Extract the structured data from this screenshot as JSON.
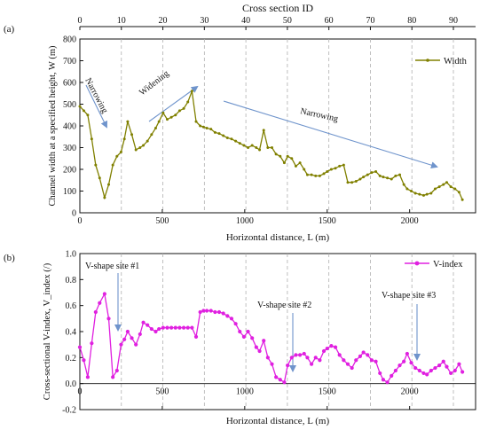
{
  "panel_a_label": "(a)",
  "panel_b_label": "(b)",
  "colors": {
    "width": "#808000",
    "vindex": "#e020e0",
    "arrow": "#6f94cc",
    "dash": "#b0b0b0"
  },
  "chart_data": [
    {
      "type": "line",
      "panel": "a",
      "top_axis_label": "Cross section ID",
      "top_ticks": [
        0,
        10,
        20,
        30,
        40,
        50,
        60,
        70,
        80,
        90
      ],
      "xlabel": "Horizontal distance, L (m)",
      "ylabel": "Channel width at a specified height, W (m)",
      "xlim": [
        0,
        2400
      ],
      "ylim": [
        0,
        800
      ],
      "xticks": [
        0,
        500,
        1000,
        1500,
        2000
      ],
      "yticks": [
        0,
        100,
        200,
        300,
        400,
        500,
        600,
        700,
        800
      ],
      "grid": "vertical dashed lines at section-ID tick positions",
      "legend": "top-right",
      "series": [
        {
          "name": "Width",
          "x": [
            0,
            24,
            48,
            72,
            96,
            120,
            150,
            175,
            200,
            225,
            250,
            270,
            290,
            315,
            340,
            365,
            385,
            410,
            435,
            460,
            480,
            505,
            530,
            555,
            580,
            605,
            630,
            655,
            680,
            705,
            730,
            750,
            770,
            795,
            820,
            845,
            870,
            895,
            920,
            945,
            970,
            995,
            1020,
            1045,
            1070,
            1090,
            1115,
            1140,
            1165,
            1190,
            1215,
            1240,
            1260,
            1285,
            1310,
            1335,
            1360,
            1380,
            1405,
            1430,
            1455,
            1480,
            1500,
            1525,
            1550,
            1575,
            1600,
            1625,
            1650,
            1675,
            1700,
            1720,
            1745,
            1770,
            1795,
            1820,
            1840,
            1865,
            1890,
            1915,
            1940,
            1965,
            1985,
            2010,
            2035,
            2060,
            2085,
            2105,
            2130,
            2155,
            2180,
            2205,
            2225,
            2250,
            2275,
            2300,
            2320
          ],
          "values": [
            490,
            470,
            450,
            340,
            220,
            160,
            70,
            130,
            220,
            260,
            280,
            340,
            420,
            360,
            290,
            300,
            310,
            330,
            360,
            390,
            420,
            460,
            430,
            440,
            450,
            470,
            480,
            510,
            560,
            420,
            400,
            395,
            390,
            385,
            370,
            365,
            355,
            345,
            340,
            330,
            320,
            310,
            300,
            310,
            300,
            290,
            380,
            300,
            300,
            270,
            260,
            230,
            260,
            250,
            215,
            230,
            200,
            175,
            175,
            170,
            170,
            180,
            190,
            200,
            205,
            215,
            220,
            140,
            140,
            145,
            155,
            165,
            175,
            185,
            190,
            170,
            165,
            160,
            155,
            170,
            175,
            130,
            110,
            100,
            90,
            85,
            80,
            85,
            90,
            110,
            120,
            130,
            140,
            120,
            110,
            95,
            60
          ]
        }
      ],
      "annotations": [
        "Narrowing",
        "Widening",
        "Narrowing"
      ]
    },
    {
      "type": "line",
      "panel": "b",
      "xlabel": "Horizontal distance, L (m)",
      "ylabel": "Cross-sectional V-index, V_index (/)",
      "xlim": [
        0,
        2400
      ],
      "ylim": [
        -0.2,
        1.0
      ],
      "xticks": [
        0,
        500,
        1000,
        1500,
        2000
      ],
      "yticks": [
        -0.2,
        0.0,
        0.2,
        0.4,
        0.6,
        0.8,
        1.0
      ],
      "grid": "vertical dashed lines at section-ID tick positions",
      "legend": "top-right",
      "series": [
        {
          "name": "V-index",
          "x": [
            0,
            24,
            48,
            72,
            96,
            120,
            150,
            175,
            200,
            225,
            250,
            270,
            290,
            315,
            340,
            365,
            385,
            410,
            435,
            460,
            480,
            505,
            530,
            555,
            580,
            605,
            630,
            655,
            680,
            705,
            730,
            750,
            770,
            795,
            820,
            845,
            870,
            895,
            920,
            945,
            970,
            995,
            1020,
            1045,
            1070,
            1090,
            1115,
            1140,
            1165,
            1190,
            1215,
            1240,
            1260,
            1285,
            1310,
            1335,
            1360,
            1380,
            1405,
            1430,
            1455,
            1480,
            1500,
            1525,
            1550,
            1575,
            1600,
            1625,
            1650,
            1675,
            1700,
            1720,
            1745,
            1770,
            1795,
            1820,
            1840,
            1865,
            1890,
            1915,
            1940,
            1965,
            1985,
            2010,
            2035,
            2060,
            2085,
            2105,
            2130,
            2155,
            2180,
            2205,
            2225,
            2250,
            2275,
            2300,
            2320
          ],
          "values": [
            0.28,
            0.18,
            0.05,
            0.31,
            0.55,
            0.62,
            0.69,
            0.5,
            0.05,
            0.1,
            0.3,
            0.34,
            0.4,
            0.35,
            0.3,
            0.38,
            0.47,
            0.45,
            0.42,
            0.4,
            0.42,
            0.43,
            0.43,
            0.43,
            0.43,
            0.43,
            0.43,
            0.43,
            0.43,
            0.36,
            0.55,
            0.56,
            0.56,
            0.56,
            0.55,
            0.55,
            0.54,
            0.52,
            0.5,
            0.46,
            0.4,
            0.36,
            0.4,
            0.35,
            0.28,
            0.25,
            0.33,
            0.2,
            0.15,
            0.05,
            0.03,
            0.01,
            0.14,
            0.2,
            0.22,
            0.22,
            0.23,
            0.2,
            0.15,
            0.2,
            0.18,
            0.25,
            0.27,
            0.29,
            0.28,
            0.22,
            0.18,
            0.15,
            0.12,
            0.18,
            0.21,
            0.24,
            0.22,
            0.18,
            0.17,
            0.08,
            0.03,
            0.01,
            0.06,
            0.1,
            0.14,
            0.17,
            0.23,
            0.16,
            0.12,
            0.1,
            0.08,
            0.07,
            0.1,
            0.12,
            0.14,
            0.17,
            0.13,
            0.08,
            0.1,
            0.15,
            0.09
          ]
        }
      ],
      "annotations": [
        "V-shape site #1",
        "V-shape site #2",
        "V-shape site #3"
      ]
    }
  ]
}
